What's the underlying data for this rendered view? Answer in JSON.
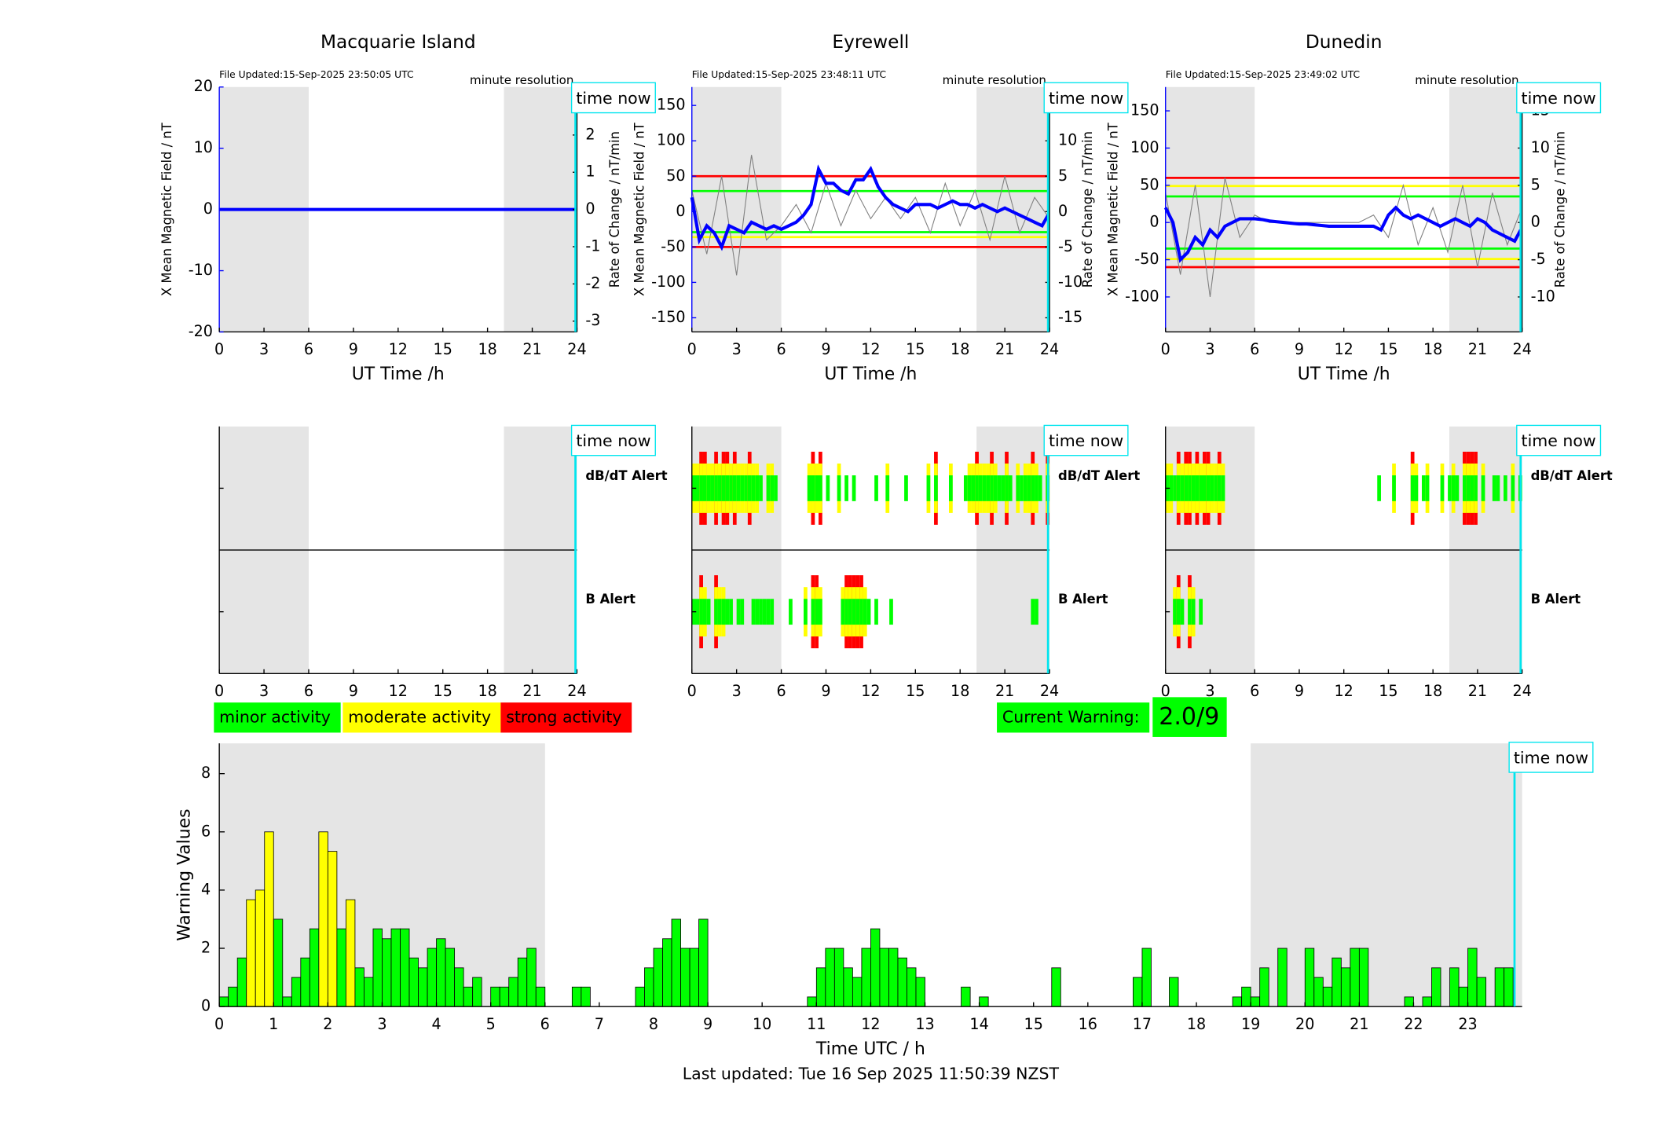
{
  "chart_data": [
    {
      "type": "line",
      "title": "Macquarie Island",
      "annotation": "File Updated:15-Sep-2025 23:50:05 UTC",
      "resolution": "minute resolution",
      "time_now_label": "time now",
      "time_now": 23.9,
      "xlabel": "UT Time /h",
      "ylabel": "X Mean Magnetic Field / nT",
      "y2label": "Rate of Change / nT/min",
      "xlim": [
        0,
        24
      ],
      "xticks": [
        0,
        3,
        6,
        9,
        12,
        15,
        18,
        21,
        24
      ],
      "ylim": [
        -20,
        20
      ],
      "yticks": [
        -20,
        -10,
        0,
        10,
        20
      ],
      "y2lim": [
        -3.29,
        3.29
      ],
      "y2ticks": [
        -3,
        -2,
        -1,
        0,
        1,
        2,
        3
      ],
      "shaded": [
        [
          0,
          6
        ],
        [
          19.1,
          24
        ]
      ],
      "hlines": [],
      "series": [
        {
          "color": "#0000ff",
          "x": [
            0,
            24
          ],
          "values": [
            0,
            0
          ]
        }
      ]
    },
    {
      "type": "line",
      "title": "Eyrewell",
      "annotation": "File Updated:15-Sep-2025 23:48:11 UTC",
      "resolution": "minute resolution",
      "time_now_label": "time now",
      "time_now": 23.9,
      "xlabel": "UT Time /h",
      "ylabel": "X Mean Magnetic Field / nT",
      "y2label": "Rate of Change / nT/min",
      "xlim": [
        0,
        24
      ],
      "xticks": [
        0,
        3,
        6,
        9,
        12,
        15,
        18,
        21,
        24
      ],
      "ylim": [
        -170,
        176
      ],
      "yticks": [
        -150,
        -100,
        -50,
        0,
        50,
        100,
        150
      ],
      "y2lim": [
        -17,
        17.6
      ],
      "y2ticks": [
        -15,
        -10,
        -5,
        0,
        5,
        10,
        15
      ],
      "shaded": [
        [
          0,
          6
        ],
        [
          19.1,
          24
        ]
      ],
      "hlines": [
        {
          "value": 50,
          "color": "#ff0000"
        },
        {
          "value": -50,
          "color": "#ff0000"
        },
        {
          "value": -36,
          "color": "#ffff00"
        },
        {
          "value": 29,
          "color": "#00ff00"
        },
        {
          "value": -29,
          "color": "#00ff00"
        }
      ],
      "series": [
        {
          "color": "#808080",
          "axis": "y2",
          "x": [
            0,
            1,
            2,
            3,
            4,
            5,
            6,
            7,
            8,
            9,
            10,
            11,
            12,
            13,
            14,
            15,
            16,
            17,
            18,
            19,
            20,
            21,
            22,
            23,
            24
          ],
          "values": [
            3,
            -6,
            5,
            -9,
            8,
            -4,
            -2,
            1,
            -3,
            4,
            -2,
            3,
            -1,
            2,
            -1,
            2,
            -3,
            4,
            -2,
            3,
            -4,
            5,
            -3,
            2,
            -1
          ]
        },
        {
          "color": "#0000ff",
          "x": [
            0,
            0.5,
            1,
            1.5,
            2,
            2.5,
            3,
            3.5,
            4,
            4.5,
            5,
            5.5,
            6,
            6.5,
            7,
            7.5,
            8,
            8.5,
            9,
            9.5,
            10,
            10.5,
            11,
            11.5,
            12,
            12.5,
            13,
            13.5,
            14,
            14.5,
            15,
            15.5,
            16,
            16.5,
            17,
            17.5,
            18,
            18.5,
            19,
            19.5,
            20,
            20.5,
            21,
            21.5,
            22,
            22.5,
            23,
            23.5,
            23.9
          ],
          "values": [
            20,
            -40,
            -20,
            -30,
            -50,
            -20,
            -25,
            -30,
            -15,
            -20,
            -25,
            -20,
            -25,
            -20,
            -15,
            -5,
            10,
            60,
            40,
            40,
            30,
            25,
            45,
            45,
            60,
            35,
            20,
            10,
            5,
            0,
            10,
            10,
            10,
            5,
            10,
            15,
            10,
            10,
            5,
            10,
            5,
            0,
            5,
            0,
            -5,
            -10,
            -15,
            -20,
            -5
          ]
        }
      ]
    },
    {
      "type": "line",
      "title": "Dunedin",
      "annotation": "File Updated:15-Sep-2025 23:49:02 UTC",
      "resolution": "minute resolution",
      "time_now_label": "time now",
      "time_now": 23.9,
      "xlabel": "UT Time /h",
      "ylabel": "X Mean Magnetic Field / nT",
      "y2label": "Rate of Change / nT/min",
      "xlim": [
        0,
        24
      ],
      "xticks": [
        0,
        3,
        6,
        9,
        12,
        15,
        18,
        21,
        24
      ],
      "ylim": [
        -147,
        182
      ],
      "yticks": [
        -100,
        -50,
        0,
        50,
        100,
        150
      ],
      "y2lim": [
        -14.7,
        18.2
      ],
      "y2ticks": [
        -10,
        -5,
        0,
        5,
        10,
        15
      ],
      "shaded": [
        [
          0,
          6
        ],
        [
          19.1,
          24
        ]
      ],
      "hlines": [
        {
          "value": 60,
          "color": "#ff0000"
        },
        {
          "value": -60,
          "color": "#ff0000"
        },
        {
          "value": 49,
          "color": "#ffff00"
        },
        {
          "value": -49,
          "color": "#ffff00"
        },
        {
          "value": 35,
          "color": "#00ff00"
        },
        {
          "value": -35,
          "color": "#00ff00"
        }
      ],
      "series": [
        {
          "color": "#808080",
          "axis": "y2",
          "x": [
            0,
            1,
            2,
            3,
            4,
            5,
            6,
            7,
            8,
            9,
            10,
            11,
            12,
            13,
            14,
            15,
            16,
            17,
            18,
            19,
            20,
            21,
            22,
            23,
            24
          ],
          "values": [
            4,
            -7,
            5,
            -10,
            6,
            -2,
            1,
            0,
            0,
            0,
            0,
            0,
            0,
            0,
            1,
            -2,
            5,
            -3,
            2,
            -4,
            5,
            -6,
            4,
            -3,
            2
          ]
        },
        {
          "color": "#0000ff",
          "x": [
            0,
            0.5,
            1,
            1.5,
            2,
            2.5,
            3,
            3.5,
            4,
            4.5,
            5,
            5.5,
            6,
            6.5,
            7,
            7.5,
            8,
            8.5,
            9,
            9.5,
            10,
            10.5,
            11,
            11.5,
            12,
            12.5,
            13,
            13.5,
            14,
            14.5,
            15,
            15.5,
            16,
            16.5,
            17,
            17.5,
            18,
            18.5,
            19,
            19.5,
            20,
            20.5,
            21,
            21.5,
            22,
            22.5,
            23,
            23.5,
            23.9
          ],
          "values": [
            20,
            0,
            -50,
            -40,
            -20,
            -30,
            -10,
            -20,
            -5,
            0,
            5,
            5,
            5,
            4,
            2,
            1,
            0,
            -1,
            -2,
            -2,
            -3,
            -4,
            -5,
            -5,
            -5,
            -5,
            -5,
            -5,
            -5,
            -10,
            10,
            20,
            10,
            5,
            10,
            5,
            0,
            -5,
            0,
            5,
            0,
            -5,
            5,
            0,
            -10,
            -15,
            -20,
            -25,
            -10
          ]
        }
      ]
    },
    {
      "type": "alert",
      "time_now_label": "time now",
      "time_now": 23.9,
      "xlim": [
        0,
        24
      ],
      "xticks": [
        0,
        3,
        6,
        9,
        12,
        15,
        18,
        21,
        24
      ],
      "shaded": [
        [
          0,
          6
        ],
        [
          19.1,
          24
        ]
      ],
      "bin_width": 0.25,
      "level_colors": [
        "#00ff00",
        "#ffff00",
        "#ff0000"
      ],
      "rows": [
        {
          "label": "dB/dT Alert",
          "color": "#000000",
          "x": [],
          "levels": []
        },
        {
          "label": "B Alert",
          "color": "#0000ff",
          "x": [],
          "levels": []
        }
      ]
    },
    {
      "type": "alert",
      "time_now_label": "time now",
      "time_now": 23.9,
      "xlim": [
        0,
        24
      ],
      "xticks": [
        0,
        3,
        6,
        9,
        12,
        15,
        18,
        21,
        24
      ],
      "shaded": [
        [
          0,
          6
        ],
        [
          19.1,
          24
        ]
      ],
      "bin_width": 0.25,
      "level_colors": [
        "#00ff00",
        "#ffff00",
        "#ff0000"
      ],
      "rows": [
        {
          "label": "dB/dT Alert",
          "color": "#000000",
          "x": [
            0,
            0.25,
            0.5,
            0.75,
            1,
            1.25,
            1.5,
            1.75,
            2,
            2.25,
            2.5,
            2.75,
            3,
            3.25,
            3.5,
            3.75,
            4,
            4.25,
            4.5,
            5,
            5.25,
            5.5,
            7.75,
            8,
            8.25,
            8.5,
            9,
            9.75,
            10.25,
            10.75,
            12.25,
            13,
            14.25,
            15.75,
            16.25,
            17.25,
            18.25,
            18.5,
            18.75,
            19,
            19.25,
            19.5,
            19.75,
            20,
            20.25,
            20.5,
            20.75,
            21,
            21.25,
            21.75,
            22,
            22.25,
            22.5,
            22.75,
            23,
            23.25,
            23.75
          ],
          "levels": [
            2,
            2,
            3,
            3,
            2,
            2,
            3,
            2,
            3,
            3,
            2,
            3,
            2,
            2,
            2,
            3,
            2,
            2,
            1,
            2,
            2,
            1,
            2,
            3,
            2,
            3,
            1,
            2,
            1,
            1,
            1,
            2,
            1,
            2,
            3,
            2,
            1,
            2,
            2,
            3,
            2,
            2,
            2,
            3,
            2,
            1,
            1,
            3,
            1,
            2,
            1,
            2,
            2,
            3,
            2,
            1,
            3
          ]
        },
        {
          "label": "B Alert",
          "color": "#0000ff",
          "x": [
            0,
            0.25,
            0.5,
            0.75,
            1,
            1.5,
            1.75,
            2,
            2.25,
            2.5,
            3,
            3.25,
            4,
            4.25,
            4.5,
            4.75,
            5,
            5.25,
            6.5,
            7.5,
            8,
            8.25,
            8.5,
            10,
            10.25,
            10.5,
            10.75,
            11,
            11.25,
            11.5,
            11.75,
            12.25,
            13.25,
            22.75,
            23
          ],
          "levels": [
            1,
            1,
            3,
            2,
            1,
            3,
            2,
            2,
            1,
            1,
            1,
            1,
            1,
            1,
            1,
            1,
            1,
            1,
            1,
            2,
            3,
            3,
            2,
            2,
            3,
            3,
            3,
            3,
            3,
            2,
            1,
            1,
            1,
            1,
            1
          ]
        }
      ]
    },
    {
      "type": "alert",
      "time_now_label": "time now",
      "time_now": 23.9,
      "xlim": [
        0,
        24
      ],
      "xticks": [
        0,
        3,
        6,
        9,
        12,
        15,
        18,
        21,
        24
      ],
      "shaded": [
        [
          0,
          6
        ],
        [
          19.1,
          24
        ]
      ],
      "bin_width": 0.25,
      "level_colors": [
        "#00ff00",
        "#ffff00",
        "#ff0000"
      ],
      "rows": [
        {
          "label": "dB/dT Alert",
          "color": "#000000",
          "x": [
            0,
            0.25,
            0.5,
            0.75,
            1,
            1.25,
            1.5,
            1.75,
            2,
            2.25,
            2.5,
            2.75,
            3,
            3.25,
            3.5,
            3.75,
            14.25,
            15.25,
            16.5,
            16.75,
            17.25,
            17.5,
            18.5,
            19,
            19.25,
            19.5,
            20,
            20.25,
            20.5,
            20.75,
            21.25,
            22,
            22.25,
            22.75,
            23.25,
            23.75
          ],
          "levels": [
            2,
            2,
            1,
            3,
            2,
            3,
            3,
            2,
            3,
            2,
            3,
            3,
            2,
            2,
            3,
            2,
            1,
            2,
            3,
            2,
            1,
            2,
            2,
            1,
            2,
            1,
            3,
            3,
            3,
            3,
            2,
            1,
            1,
            1,
            2,
            1
          ]
        },
        {
          "label": "B Alert",
          "color": "#0000ff",
          "x": [
            0.5,
            0.75,
            1,
            1.5,
            1.75,
            2.25
          ],
          "levels": [
            2,
            3,
            1,
            3,
            2,
            1
          ]
        }
      ]
    },
    {
      "type": "bar",
      "xlabel": "Time UTC / h",
      "ylabel": "Warning Values",
      "footer": "Last updated: Tue 16 Sep 2025 11:50:39 NZST",
      "time_now_label": "time now",
      "time_now": 23.86,
      "xlim": [
        0,
        24
      ],
      "xticks": [
        0,
        1,
        2,
        3,
        4,
        5,
        6,
        7,
        8,
        9,
        10,
        11,
        12,
        13,
        14,
        15,
        16,
        17,
        18,
        19,
        20,
        21,
        22,
        23
      ],
      "ylim": [
        0,
        9.04
      ],
      "yticks": [
        0,
        2,
        4,
        6,
        8
      ],
      "shaded": [
        [
          0,
          6
        ],
        [
          19,
          24
        ]
      ],
      "bin_width": 0.16667,
      "values": [
        0.33,
        0.67,
        1.67,
        3.67,
        4,
        6,
        3,
        0.33,
        1,
        1.67,
        2.67,
        6,
        5.33,
        2.67,
        3.67,
        1.33,
        1,
        2.67,
        2.33,
        2.67,
        2.67,
        1.67,
        1.33,
        2,
        2.33,
        2,
        1.33,
        0.67,
        1,
        0,
        0.67,
        0.67,
        1,
        1.67,
        2,
        0.67,
        0,
        0,
        0,
        0.67,
        0.67,
        0,
        0,
        0,
        0,
        0,
        0.67,
        1.33,
        2,
        2.33,
        3,
        2,
        2,
        3,
        0,
        0,
        0,
        0,
        0,
        0,
        0,
        0,
        0,
        0,
        0,
        0.33,
        1.33,
        2,
        2,
        1.33,
        1,
        2,
        2.67,
        2,
        2,
        1.67,
        1.33,
        1,
        0,
        0,
        0,
        0,
        0.67,
        0,
        0.33,
        0,
        0,
        0,
        0,
        0,
        0,
        0,
        1.33,
        0,
        0,
        0,
        0,
        0,
        0,
        0,
        0,
        1,
        2,
        0,
        0,
        1,
        0,
        0,
        0,
        0,
        0,
        0,
        0.33,
        0.67,
        0.33,
        1.33,
        0,
        2,
        0,
        0,
        2,
        1,
        0.67,
        1.67,
        1.33,
        2,
        2,
        0,
        0,
        0,
        0,
        0.33,
        0,
        0.33,
        1.33,
        0,
        1.33,
        0.67,
        2,
        1,
        0,
        1.33,
        1.33,
        0
      ],
      "color": "#00ff00",
      "highlight_color": "#ffff00",
      "highlight_indices": [
        3,
        4,
        5,
        11,
        12,
        14
      ],
      "legend": [
        {
          "label": "minor activity",
          "color": "#00ff00"
        },
        {
          "label": "moderate activity",
          "color": "#ffff00"
        },
        {
          "label": "strong activity",
          "color": "#ff0000"
        }
      ],
      "current_warning": {
        "label": "Current Warning:",
        "value": "2.0/9",
        "color": "#00ff00"
      }
    }
  ]
}
